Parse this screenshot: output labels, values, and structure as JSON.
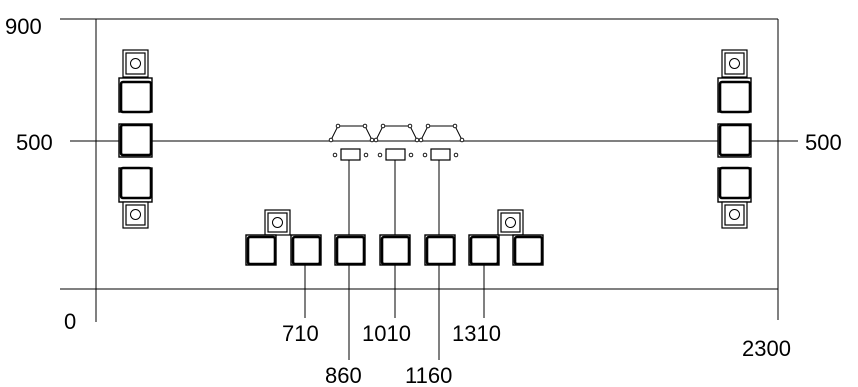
{
  "labels": {
    "y_top": "900",
    "y_mid_left": "500",
    "y_mid_right": "500",
    "x_origin": "0",
    "x_end": "2300",
    "dim_710": "710",
    "dim_860": "860",
    "dim_1010": "1010",
    "dim_1160": "1160",
    "dim_1310": "1310"
  }
}
